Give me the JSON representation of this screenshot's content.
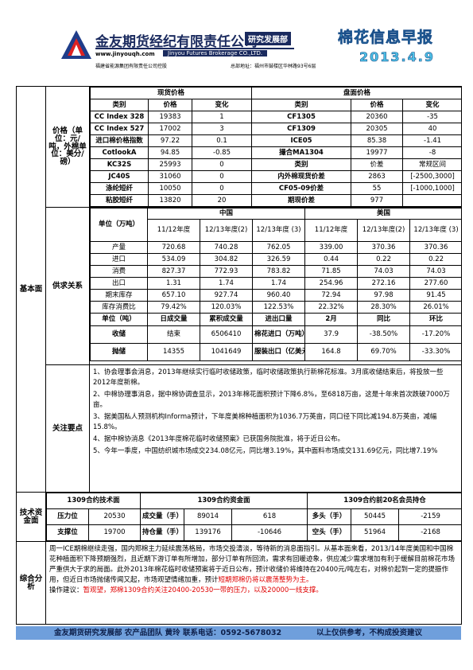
{
  "header": {
    "company": "金友期货经纪有限责任公司",
    "department": "研究发展部",
    "website": "www.jinyouqh.com",
    "company_en": "Jinyou Futures Brokerage CO.,LTD.",
    "holding": "福建省能源集团有限责任公司控股",
    "address": "总部地址：福州市鼓楼区华林路93号6层",
    "title": "棉花信息早报",
    "date": "2013.4.9"
  },
  "basic_label": "基本面",
  "price": {
    "label": "价格（单位：元/吨，外棉单位：美分/磅）",
    "spot_title": "现货价格",
    "futures_title": "盘面价格",
    "columns": [
      "类别",
      "价格",
      "变化",
      "类别",
      "价格",
      "变化"
    ],
    "rows": [
      [
        "CC Index 328",
        "19383",
        "1",
        "CF1305",
        "20360",
        "-35"
      ],
      [
        "CC Index 527",
        "17002",
        "3",
        "CF1309",
        "20305",
        "40"
      ],
      [
        "进口棉价格指数",
        "97.22",
        "0.1",
        "ICE05",
        "85.38",
        "-1.41"
      ],
      [
        "CotlookA",
        "94.85",
        "-0.85",
        "撮合MA1304",
        "19977",
        "-8"
      ],
      [
        "KC32S",
        "25993",
        "0",
        "类别",
        "价差",
        "常规区间"
      ],
      [
        "JC40S",
        "31060",
        "0",
        "内外棉现货价差",
        "2863",
        "[-2500,3000]"
      ],
      [
        "涤纶短纤",
        "10050",
        "0",
        "CF05-09价差",
        "55",
        "[-1000,1000]"
      ],
      [
        "粘胶短纤",
        "13820",
        "20",
        "期现价差",
        "977"
      ]
    ]
  },
  "supply": {
    "label": "供求关系",
    "unit_label": "单位（万吨）",
    "china": "中国",
    "usa": "美国",
    "columns": [
      "11/12年度",
      "12/13年度(2)",
      "12/13年度 (3)",
      "11/12年度",
      "12/13年度(2)",
      "12/13年度 (3)"
    ],
    "rows": [
      [
        "产量",
        "720.68",
        "740.28",
        "762.05",
        "339.00",
        "370.36",
        "370.36"
      ],
      [
        "进口",
        "534.09",
        "304.82",
        "326.59",
        "0.44",
        "0.22",
        "0.22"
      ],
      [
        "消费",
        "827.37",
        "772.93",
        "783.82",
        "71.85",
        "74.03",
        "74.03"
      ],
      [
        "出口",
        "1.31",
        "1.74",
        "1.74",
        "254.96",
        "272.16",
        "277.60"
      ],
      [
        "期末库存",
        "657.10",
        "927.74",
        "960.40",
        "72.94",
        "97.98",
        "91.45"
      ],
      [
        "库存消费比",
        "79.42%",
        "120.03%",
        "122.53%",
        "22.32%",
        "28.30%",
        "26.01%"
      ]
    ],
    "trade_rows": [
      [
        "单位（吨）",
        "日成交量",
        "累积成交量",
        "进出口量",
        "2月",
        "同比",
        "环比"
      ],
      [
        "收储",
        "结束",
        "6506410",
        "棉花进口（万吨）",
        "37.9",
        "-38.50%",
        "-17.20%"
      ],
      [
        "抛储",
        "14355",
        "1041649",
        "服装出口（亿美元",
        "164.8",
        "69.70%",
        "-33.30%"
      ]
    ]
  },
  "focus": {
    "label": "关注要点",
    "items": [
      "1、协会理事会消息，2013年继续实行临时收储政策，临时收储政策执行新棉花标准。3月底收储结束后，将投放一些2012年度新棉。",
      "2、中棉协理事消息，据中棉协调查显示，2013年棉花面积预计下降6.8%，至6818万亩，这是十年来首次跌破7000万亩。",
      "3、据美国私人预测机构Informa预计，下年度美棉种植面积为1036.7万英亩，同口径下同比减194.8万英亩，减幅15.8%。",
      "4、据中棉协消息《2013年度棉花临时收储预案》已获国务院批准，将于近日公布。",
      "5、今年一季度，中国纺织城市场成交234.08亿元，同比增3.19%，其中面料市场成交131.69亿元，同比增7.19%"
    ]
  },
  "technical": {
    "label": "技术资金面",
    "headers": [
      "1309合约技术面",
      "1309合约资金面",
      "1309合约前20名会员持仓"
    ],
    "rows": [
      [
        "压力位",
        "20530",
        "成交量（手）",
        "89014",
        "618",
        "多头（手）",
        "50445",
        "-2159"
      ],
      [
        "支撑位",
        "19700",
        "持仓量（手）",
        "139176",
        "-10646",
        "空头（手）",
        "51964",
        "-2168"
      ]
    ]
  },
  "summary": {
    "label": "综合分析",
    "highlight_color": "#e00000",
    "paragraphs": [
      [
        {
          "text": "周一ICE期棉继续走强，国内郑棉主力延续震荡格局，市场交投清淡，等待新的消息面指引。从基本面来看，2013/14年度美国和中国棉花种植面积下降预期强烈，且近期下游订单有所增加，部分订单有所回流，需求有回暖迹象，供应减少需求增加有利于缓解目前棉花市场严重供大于求的局面。此外2013年棉花临时收储预案将于近日公布，预计收储价将维持在20400元/吨左右，对棉价起到一定的提振作用，但近日市场抛储传闻又起，市场观望情绪加重，预计"
        },
        {
          "text": "短期郑棉仍将以震荡整势为主。",
          "highlight": true
        }
      ],
      [
        {
          "text": "操作建议："
        },
        {
          "text": "暂观望，郑棉1309合约关注20400-20530一带的压力，以及20000一线支撑。",
          "highlight": true
        }
      ]
    ]
  },
  "footer": {
    "team": "金友期货研究发展部 农产品团队 黄玲",
    "phone": "联系电话：0592-5678032",
    "disclaimer": "以上仅供参考，不构成投资建议"
  }
}
